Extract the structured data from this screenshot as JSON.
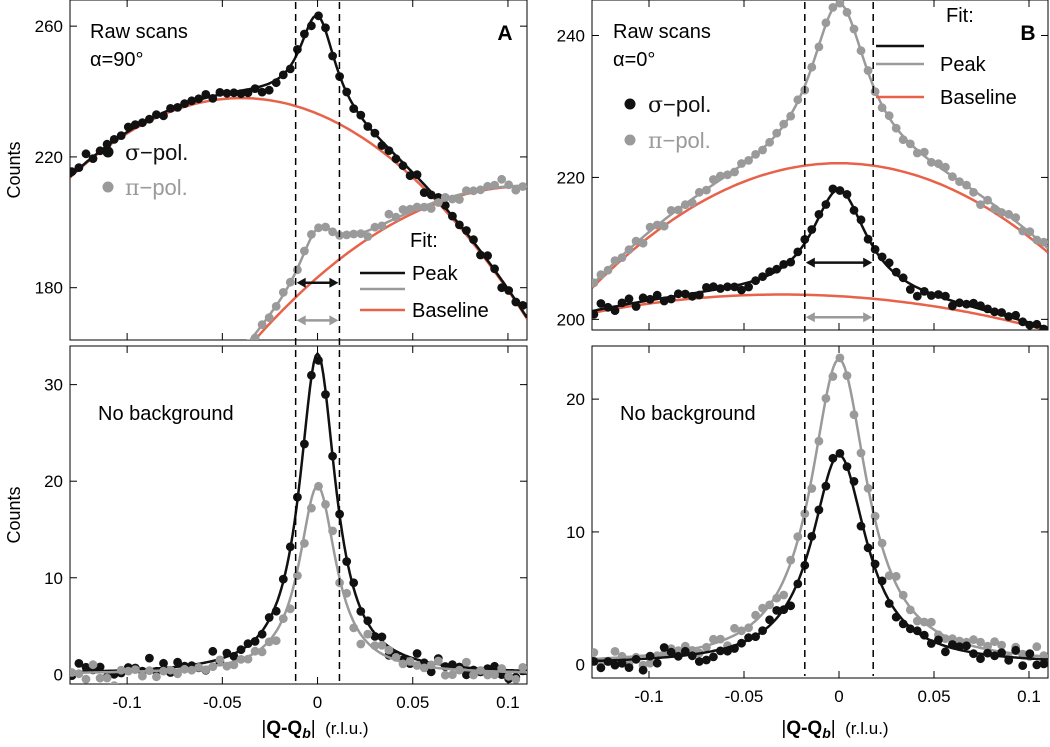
{
  "figure": {
    "x_axis_label": {
      "bars": "|",
      "bold": "Q-Q",
      "sub": "b",
      "units": "  (r.l.u.)"
    },
    "colors": {
      "sigma": "#111111",
      "pi": "#9a9a9a",
      "baseline": "#e8624a",
      "axis": "#000000"
    }
  },
  "chart_data": [
    {
      "id": "A-top",
      "type": "scatter",
      "panel_letter": "A",
      "ylabel": "Counts",
      "annotation_lines": [
        "Raw scans",
        "α=90°"
      ],
      "xlim": [
        -0.13,
        0.11
      ],
      "ylim": [
        164,
        268
      ],
      "yticks": [
        180,
        220,
        260
      ],
      "ytick_labels": [
        "180",
        "220",
        "260"
      ],
      "xticks": [
        -0.1,
        -0.05,
        0,
        0.05,
        0.1
      ],
      "legend": {
        "markers": [
          {
            "series": "sigma",
            "glyph": "σ",
            "text": "−pol."
          },
          {
            "series": "pi",
            "glyph": "π",
            "text": "−pol."
          }
        ],
        "fit_title": "Fit:",
        "fit_entries": [
          {
            "series": "sigma",
            "text": "Peak"
          },
          {
            "series": "pi",
            "text": ""
          },
          {
            "series": "baseline",
            "text": "Baseline"
          }
        ]
      },
      "width_markers": [
        {
          "series": "sigma",
          "y": 181.5
        },
        {
          "series": "pi",
          "y": 170
        }
      ],
      "series": [
        {
          "name": "σ-pol. raw",
          "role": "sigma",
          "amp": 30,
          "hw": 0.0115,
          "x0": 0,
          "base": [
            238,
            -0.04,
            3000
          ]
        },
        {
          "name": "π-pol. raw",
          "role": "pi",
          "amp": 15,
          "hw": 0.0118,
          "x0": 0,
          "base": [
            211,
            0.11,
            2300
          ]
        }
      ]
    },
    {
      "id": "A-bottom",
      "type": "scatter",
      "ylabel": "Counts",
      "annotation_lines": [
        "No background"
      ],
      "xlim": [
        -0.13,
        0.11
      ],
      "ylim": [
        -1,
        34
      ],
      "yticks": [
        0,
        10,
        20,
        30
      ],
      "ytick_labels": [
        "0",
        "10",
        "20",
        "30"
      ],
      "xticks": [
        -0.1,
        -0.05,
        0,
        0.05,
        0.1
      ],
      "xtick_labels": [
        "-0.1",
        "-0.05",
        "0",
        "0.05",
        "0.1"
      ],
      "series": [
        {
          "name": "σ-pol. subtracted",
          "role": "sigma",
          "amp": 33.2,
          "hw": 0.0115,
          "x0": 0,
          "base": [
            0,
            0,
            0
          ]
        },
        {
          "name": "π-pol. subtracted",
          "role": "pi",
          "amp": 19.5,
          "hw": 0.0118,
          "x0": 0,
          "base": [
            0,
            0,
            0
          ]
        }
      ]
    },
    {
      "id": "B-top",
      "type": "scatter",
      "panel_letter": "B",
      "annotation_lines": [
        "Raw scans",
        "α=0°"
      ],
      "xlim": [
        -0.13,
        0.11
      ],
      "ylim": [
        198.5,
        245
      ],
      "yticks": [
        200,
        220,
        240
      ],
      "ytick_labels": [
        "200",
        "220",
        "240"
      ],
      "xticks": [
        -0.1,
        -0.05,
        0,
        0.05,
        0.1
      ],
      "legend": {
        "markers": [
          {
            "series": "sigma",
            "glyph": "σ",
            "text": "−pol."
          },
          {
            "series": "pi",
            "glyph": "π",
            "text": "−pol."
          }
        ],
        "fit_title": "Fit:",
        "fit_entries": [
          {
            "series": "sigma",
            "text": ""
          },
          {
            "series": "pi",
            "text": "Peak"
          },
          {
            "series": "baseline",
            "text": "Baseline"
          }
        ]
      },
      "width_markers": [
        {
          "series": "sigma",
          "y": 208
        },
        {
          "series": "pi",
          "y": 200.3
        }
      ],
      "series": [
        {
          "name": "π-pol. raw",
          "role": "pi",
          "amp": 22.5,
          "hw": 0.018,
          "x0": 0,
          "base": [
            222,
            0,
            1040
          ]
        },
        {
          "name": "σ-pol. raw",
          "role": "sigma",
          "amp": 15,
          "hw": 0.0175,
          "x0": 0,
          "base": [
            203.5,
            -0.03,
            260
          ]
        }
      ]
    },
    {
      "id": "B-bottom",
      "type": "scatter",
      "annotation_lines": [
        "No background"
      ],
      "xlim": [
        -0.13,
        0.11
      ],
      "ylim": [
        -1,
        24
      ],
      "yticks": [
        0,
        10,
        20
      ],
      "ytick_labels": [
        "0",
        "10",
        "20"
      ],
      "xticks": [
        -0.1,
        -0.05,
        0,
        0.05,
        0.1
      ],
      "xtick_labels": [
        "-0.1",
        "-0.05",
        "0",
        "0.05",
        "0.1"
      ],
      "series": [
        {
          "name": "π-pol. subtracted",
          "role": "pi",
          "amp": 23,
          "hw": 0.018,
          "x0": 0,
          "base": [
            0,
            0,
            0
          ]
        },
        {
          "name": "σ-pol. subtracted",
          "role": "sigma",
          "amp": 15.8,
          "hw": 0.0175,
          "x0": 0,
          "base": [
            0,
            0,
            0
          ]
        }
      ]
    }
  ],
  "dashed_guides": [
    {
      "column": "A",
      "x": [
        -0.0115,
        0.0115
      ]
    },
    {
      "column": "B",
      "x": [
        -0.018,
        0.018
      ]
    }
  ]
}
